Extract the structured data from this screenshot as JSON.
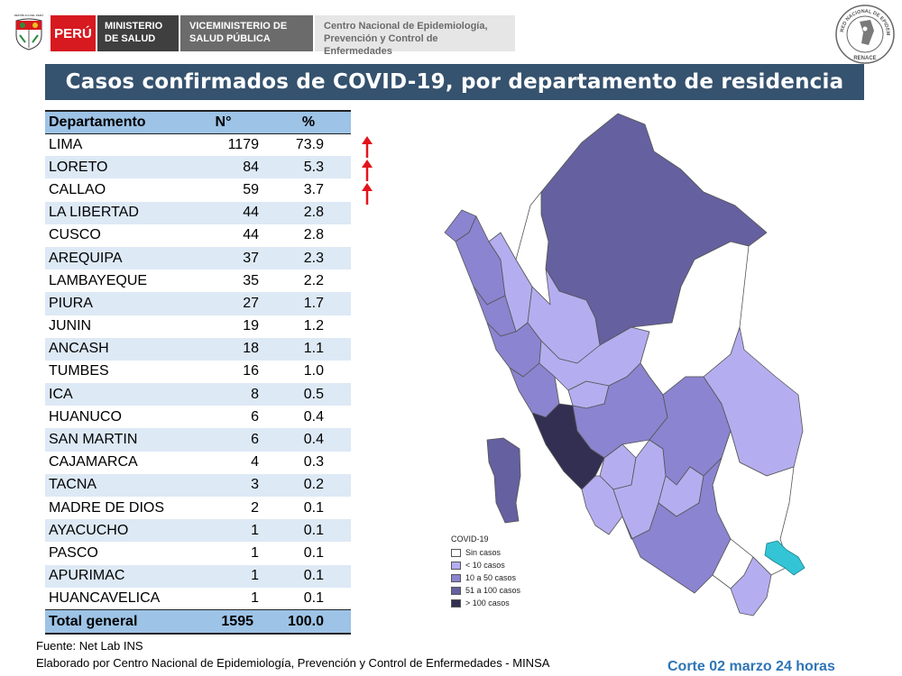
{
  "header": {
    "emblem_text": "REPÚBLICA DEL PERÚ",
    "country": "PERÚ",
    "ministry": "MINISTERIO DE SALUD",
    "viceministry": "VICEMINISTERIO DE SALUD PÚBLICA",
    "center_line1": "Centro Nacional de Epidemiología,",
    "center_line2": "Prevención y Control de Enfermedades",
    "renace_text": "RED NACIONAL DE EPIDEMIOLOGÍA",
    "renace_name": "RENACE"
  },
  "title": "Casos confirmados de COVID-19, por departamento de residencia",
  "table": {
    "headers": [
      "Departamento",
      "N°",
      "%"
    ],
    "rows": [
      {
        "dep": "LIMA",
        "n": "1179",
        "p": "73.9"
      },
      {
        "dep": "LORETO",
        "n": "84",
        "p": "5.3"
      },
      {
        "dep": "CALLAO",
        "n": "59",
        "p": "3.7"
      },
      {
        "dep": "LA LIBERTAD",
        "n": "44",
        "p": "2.8"
      },
      {
        "dep": "CUSCO",
        "n": "44",
        "p": "2.8"
      },
      {
        "dep": "AREQUIPA",
        "n": "37",
        "p": "2.3"
      },
      {
        "dep": "LAMBAYEQUE",
        "n": "35",
        "p": "2.2"
      },
      {
        "dep": "PIURA",
        "n": "27",
        "p": "1.7"
      },
      {
        "dep": "JUNIN",
        "n": "19",
        "p": "1.2"
      },
      {
        "dep": "ANCASH",
        "n": "18",
        "p": "1.1"
      },
      {
        "dep": "TUMBES",
        "n": "16",
        "p": "1.0"
      },
      {
        "dep": "ICA",
        "n": "8",
        "p": "0.5"
      },
      {
        "dep": "HUANUCO",
        "n": "6",
        "p": "0.4"
      },
      {
        "dep": "SAN MARTIN",
        "n": "6",
        "p": "0.4"
      },
      {
        "dep": "CAJAMARCA",
        "n": "4",
        "p": "0.3"
      },
      {
        "dep": "TACNA",
        "n": "3",
        "p": "0.2"
      },
      {
        "dep": "MADRE DE DIOS",
        "n": "2",
        "p": "0.1"
      },
      {
        "dep": "AYACUCHO",
        "n": "1",
        "p": "0.1"
      },
      {
        "dep": "PASCO",
        "n": "1",
        "p": "0.1"
      },
      {
        "dep": "APURIMAC",
        "n": "1",
        "p": "0.1"
      },
      {
        "dep": "HUANCAVELICA",
        "n": "1",
        "p": "0.1"
      }
    ],
    "total": {
      "dep": "Total general",
      "n": "1595",
      "p": "100.0"
    }
  },
  "arrows_on": [
    "LIMA",
    "LORETO",
    "CALLAO"
  ],
  "legend": {
    "title": "COVID-19",
    "items": [
      {
        "label": "Sin casos",
        "color": "#ffffff"
      },
      {
        "label": "< 10 casos",
        "color": "#b4aef0"
      },
      {
        "label": "10 a 50 casos",
        "color": "#8b84d0"
      },
      {
        "label": "51 a 100 casos",
        "color": "#65609f"
      },
      {
        "label": "> 100 casos",
        "color": "#332f52"
      }
    ]
  },
  "colors": {
    "title_bar": "#35526e",
    "table_header": "#9dc3e6",
    "arrow": "#e3141b",
    "lake": "#33c5d5",
    "corte": "#2e75b6"
  },
  "footer": {
    "source": "Fuente: Net Lab INS",
    "elaborado": "Elaborado por Centro Nacional de Epidemiología, Prevención y Control de Enfermedades - MINSA",
    "corte": "Corte 02 marzo 24 horas"
  }
}
